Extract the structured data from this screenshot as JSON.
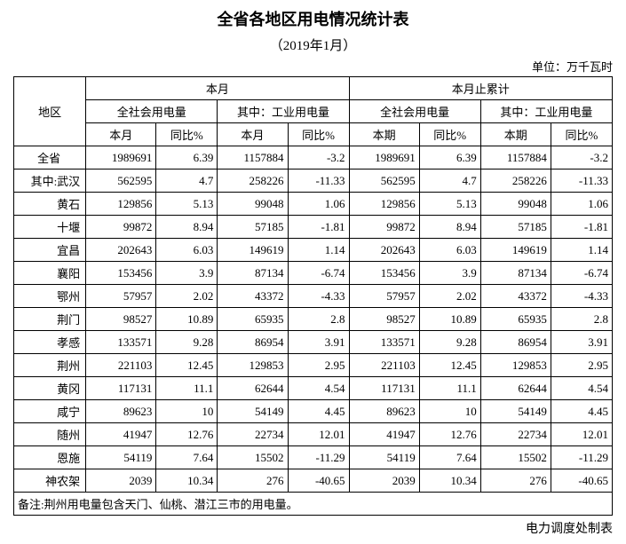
{
  "title": "全省各地区用电情况统计表",
  "subtitle": "（2019年1月）",
  "unit": "单位：万千瓦时",
  "header": {
    "region": "地区",
    "group_month": "本月",
    "group_cumulative": "本月止累计",
    "sub_total": "全社会用电量",
    "sub_industrial": "其中：工业用电量",
    "col_current": "本月",
    "col_yoy": "同比%",
    "col_period": "本期"
  },
  "rows": [
    {
      "region": "全省",
      "center": true,
      "a1": "1989691",
      "a2": "6.39",
      "a3": "1157884",
      "a4": "-3.2",
      "b1": "1989691",
      "b2": "6.39",
      "b3": "1157884",
      "b4": "-3.2"
    },
    {
      "region": "其中:武汉",
      "a1": "562595",
      "a2": "4.7",
      "a3": "258226",
      "a4": "-11.33",
      "b1": "562595",
      "b2": "4.7",
      "b3": "258226",
      "b4": "-11.33"
    },
    {
      "region": "黄石",
      "a1": "129856",
      "a2": "5.13",
      "a3": "99048",
      "a4": "1.06",
      "b1": "129856",
      "b2": "5.13",
      "b3": "99048",
      "b4": "1.06"
    },
    {
      "region": "十堰",
      "a1": "99872",
      "a2": "8.94",
      "a3": "57185",
      "a4": "-1.81",
      "b1": "99872",
      "b2": "8.94",
      "b3": "57185",
      "b4": "-1.81"
    },
    {
      "region": "宜昌",
      "a1": "202643",
      "a2": "6.03",
      "a3": "149619",
      "a4": "1.14",
      "b1": "202643",
      "b2": "6.03",
      "b3": "149619",
      "b4": "1.14"
    },
    {
      "region": "襄阳",
      "a1": "153456",
      "a2": "3.9",
      "a3": "87134",
      "a4": "-6.74",
      "b1": "153456",
      "b2": "3.9",
      "b3": "87134",
      "b4": "-6.74"
    },
    {
      "region": "鄂州",
      "a1": "57957",
      "a2": "2.02",
      "a3": "43372",
      "a4": "-4.33",
      "b1": "57957",
      "b2": "2.02",
      "b3": "43372",
      "b4": "-4.33"
    },
    {
      "region": "荆门",
      "a1": "98527",
      "a2": "10.89",
      "a3": "65935",
      "a4": "2.8",
      "b1": "98527",
      "b2": "10.89",
      "b3": "65935",
      "b4": "2.8"
    },
    {
      "region": "孝感",
      "a1": "133571",
      "a2": "9.28",
      "a3": "86954",
      "a4": "3.91",
      "b1": "133571",
      "b2": "9.28",
      "b3": "86954",
      "b4": "3.91"
    },
    {
      "region": "荆州",
      "a1": "221103",
      "a2": "12.45",
      "a3": "129853",
      "a4": "2.95",
      "b1": "221103",
      "b2": "12.45",
      "b3": "129853",
      "b4": "2.95"
    },
    {
      "region": "黄冈",
      "a1": "117131",
      "a2": "11.1",
      "a3": "62644",
      "a4": "4.54",
      "b1": "117131",
      "b2": "11.1",
      "b3": "62644",
      "b4": "4.54"
    },
    {
      "region": "咸宁",
      "a1": "89623",
      "a2": "10",
      "a3": "54149",
      "a4": "4.45",
      "b1": "89623",
      "b2": "10",
      "b3": "54149",
      "b4": "4.45"
    },
    {
      "region": "随州",
      "a1": "41947",
      "a2": "12.76",
      "a3": "22734",
      "a4": "12.01",
      "b1": "41947",
      "b2": "12.76",
      "b3": "22734",
      "b4": "12.01"
    },
    {
      "region": "恩施",
      "a1": "54119",
      "a2": "7.64",
      "a3": "15502",
      "a4": "-11.29",
      "b1": "54119",
      "b2": "7.64",
      "b3": "15502",
      "b4": "-11.29"
    },
    {
      "region": "神农架",
      "a1": "2039",
      "a2": "10.34",
      "a3": "276",
      "a4": "-40.65",
      "b1": "2039",
      "b2": "10.34",
      "b3": "276",
      "b4": "-40.65"
    }
  ],
  "note": "备注:荆州用电量包含天门、仙桃、潜江三市的用电量。",
  "footer": "电力调度处制表"
}
